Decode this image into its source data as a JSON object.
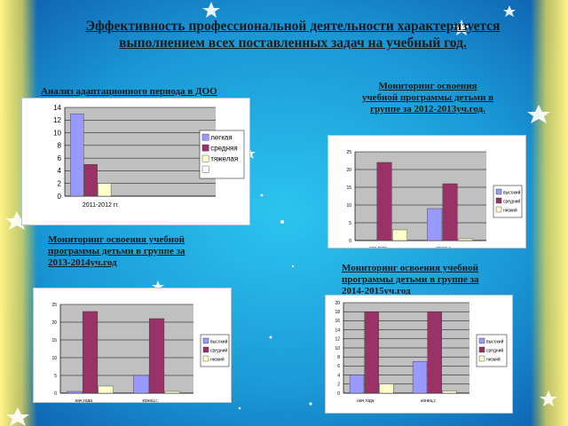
{
  "slide": {
    "title_line1": "Эффективность профессиональной деятельности характеризуется",
    "title_line2": "выполнением всех поставленных задач на учебный год.",
    "label1": "Анализ адаптационного периода в ДОО",
    "label2_l1": "Мониторинг освоения",
    "label2_l2": "учебной программы детьми в",
    "label2_l3": "группе за 2012-2013уч.год.",
    "label3_l1": "Мониторинг освоения учебной",
    "label3_l2": "программы детьми в группе за",
    "label3_l3": "2013-2014уч.год",
    "label4_l1": "Мониторинг освоения учебной",
    "label4_l2": "программы детьми в группе за",
    "label4_l3": "2014-2015уч.год"
  },
  "colors": {
    "bg_center": "#1fb7e6",
    "bg_edge": "#0f63b0",
    "series_blue": "#9999ff",
    "series_red": "#993366",
    "series_cream": "#ffffcc",
    "plot_bg": "#c0c0c0"
  },
  "chart_data": [
    {
      "type": "bar",
      "categories": [
        "2011-2012 гг."
      ],
      "ylim": [
        0,
        14
      ],
      "yticks": [
        0,
        2,
        4,
        6,
        8,
        10,
        12,
        14
      ],
      "series": [
        {
          "name": "легкая",
          "values": [
            13
          ]
        },
        {
          "name": "средняя",
          "values": [
            5
          ]
        },
        {
          "name": "тяжелая",
          "values": [
            2
          ]
        },
        {
          "name": "",
          "values": [
            0
          ]
        }
      ],
      "legend": "right"
    },
    {
      "type": "bar",
      "categories": [
        "нач.года",
        "конец.г."
      ],
      "ylim": [
        0,
        25
      ],
      "yticks": [
        0,
        5,
        10,
        15,
        20,
        25
      ],
      "series": [
        {
          "name": "высокий",
          "values": [
            0,
            9
          ]
        },
        {
          "name": "средний",
          "values": [
            22,
            16
          ]
        },
        {
          "name": "низкий",
          "values": [
            3,
            0.5
          ]
        }
      ],
      "legend": "right"
    },
    {
      "type": "bar",
      "categories": [
        "нач.года",
        "конец.г."
      ],
      "ylim": [
        0,
        25
      ],
      "yticks": [
        0,
        5,
        10,
        15,
        20,
        25
      ],
      "series": [
        {
          "name": "высокий",
          "values": [
            0.5,
            5
          ]
        },
        {
          "name": "средний",
          "values": [
            23,
            21
          ]
        },
        {
          "name": "низкий",
          "values": [
            2,
            0.5
          ]
        }
      ],
      "legend": "right"
    },
    {
      "type": "bar",
      "categories": [
        "нач.года",
        "конец.г."
      ],
      "ylim": [
        0,
        20
      ],
      "yticks": [
        0,
        2,
        4,
        6,
        8,
        10,
        12,
        14,
        16,
        18,
        20
      ],
      "series": [
        {
          "name": "высокий",
          "values": [
            4,
            7
          ]
        },
        {
          "name": "средний",
          "values": [
            18,
            18
          ]
        },
        {
          "name": "низкий",
          "values": [
            2,
            0.5
          ]
        }
      ],
      "legend": "right"
    }
  ]
}
